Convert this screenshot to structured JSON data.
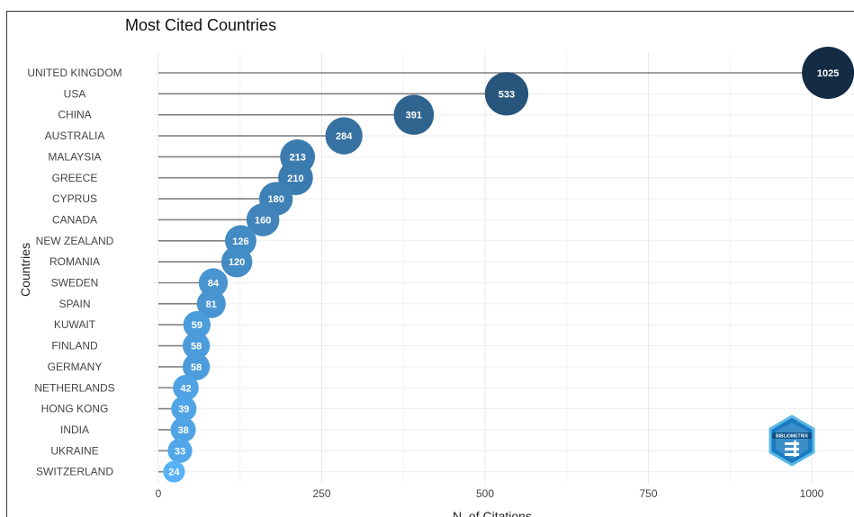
{
  "chart_data": {
    "type": "scatter",
    "title": "Most Cited Countries",
    "xlabel": "N. of Citations",
    "ylabel": "Countries",
    "xlim": [
      0,
      1050
    ],
    "x_ticks": [
      0,
      250,
      500,
      750,
      1000
    ],
    "grid": true,
    "categories": [
      "UNITED KINGDOM",
      "USA",
      "CHINA",
      "AUSTRALIA",
      "MALAYSIA",
      "GREECE",
      "CYPRUS",
      "CANADA",
      "NEW ZEALAND",
      "ROMANIA",
      "SWEDEN",
      "SPAIN",
      "KUWAIT",
      "FINLAND",
      "GERMANY",
      "NETHERLANDS",
      "HONG KONG",
      "INDIA",
      "UKRAINE",
      "SWITZERLAND"
    ],
    "values": [
      1025,
      533,
      391,
      284,
      213,
      210,
      180,
      160,
      126,
      120,
      84,
      81,
      59,
      58,
      58,
      42,
      39,
      38,
      33,
      24
    ],
    "colors": {
      "low": "#56b1f7",
      "high": "#132b43",
      "stem": "#808080"
    }
  },
  "logo": {
    "text": "BIBLIOMETRIX"
  }
}
